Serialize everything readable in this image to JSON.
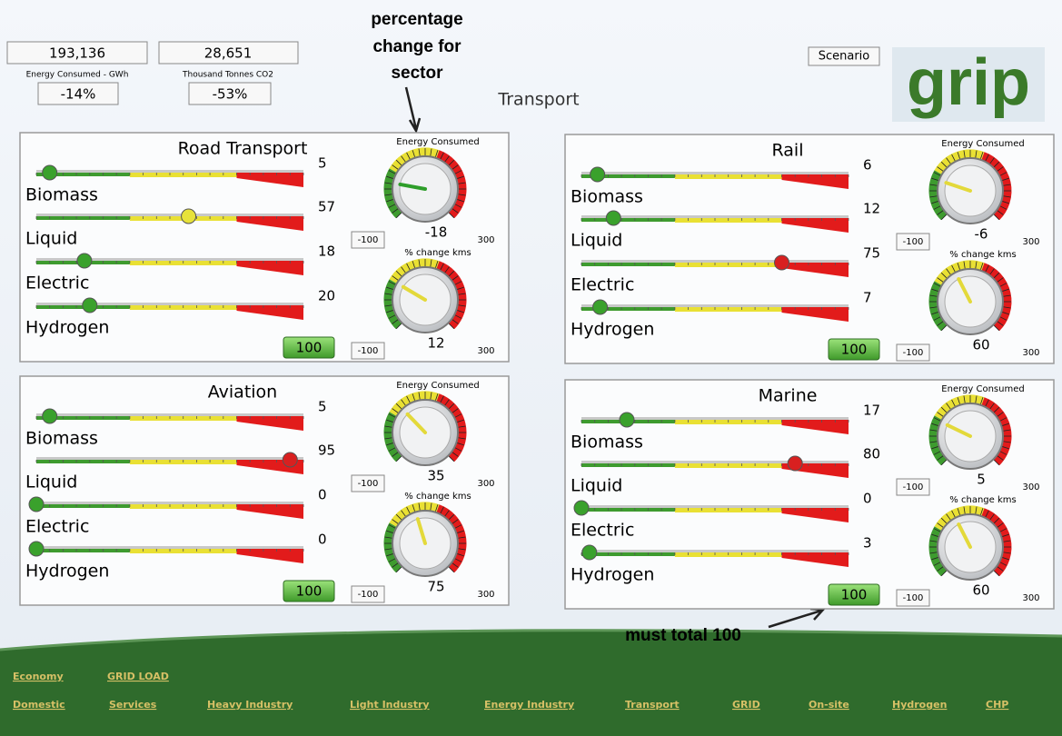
{
  "header": {
    "energy_value": "193,136",
    "energy_label": "Energy Consumed - GWh",
    "energy_change": "-14%",
    "co2_value": "28,651",
    "co2_label": "Thousand Tonnes CO2",
    "co2_change": "-53%",
    "scenario": "Scenario",
    "logo": "grip",
    "page_title": "Transport"
  },
  "annotations": {
    "sector_change": [
      "percentage",
      "change for",
      "sector"
    ],
    "must_total": "must total 100"
  },
  "panels": [
    {
      "title": "Road Transport",
      "total": 100,
      "sliders": [
        {
          "label": "Biomass",
          "value": 5
        },
        {
          "label": "Liquid",
          "value": 57
        },
        {
          "label": "Electric",
          "value": 18
        },
        {
          "label": "Hydrogen",
          "value": 20
        }
      ],
      "gauges": [
        {
          "label": "Energy Consumed",
          "value": -18,
          "min": -100,
          "max": 300
        },
        {
          "label": "% change kms",
          "value": 12,
          "min": -100,
          "max": 300
        }
      ]
    },
    {
      "title": "Rail",
      "total": 100,
      "sliders": [
        {
          "label": "Biomass",
          "value": 6
        },
        {
          "label": "Liquid",
          "value": 12
        },
        {
          "label": "Electric",
          "value": 75
        },
        {
          "label": "Hydrogen",
          "value": 7
        }
      ],
      "gauges": [
        {
          "label": "Energy Consumed",
          "value": -6,
          "min": -100,
          "max": 300
        },
        {
          "label": "% change kms",
          "value": 60,
          "min": -100,
          "max": 300
        }
      ]
    },
    {
      "title": "Aviation",
      "total": 100,
      "sliders": [
        {
          "label": "Biomass",
          "value": 5
        },
        {
          "label": "Liquid",
          "value": 95
        },
        {
          "label": "Electric",
          "value": 0
        },
        {
          "label": "Hydrogen",
          "value": 0
        }
      ],
      "gauges": [
        {
          "label": "Energy Consumed",
          "value": 35,
          "min": -100,
          "max": 300
        },
        {
          "label": "% change kms",
          "value": 75,
          "min": -100,
          "max": 300
        }
      ]
    },
    {
      "title": "Marine",
      "total": 100,
      "sliders": [
        {
          "label": "Biomass",
          "value": 17
        },
        {
          "label": "Liquid",
          "value": 80
        },
        {
          "label": "Electric",
          "value": 0
        },
        {
          "label": "Hydrogen",
          "value": 3
        }
      ],
      "gauges": [
        {
          "label": "Energy Consumed",
          "value": 5,
          "min": -100,
          "max": 300
        },
        {
          "label": "% change kms",
          "value": 60,
          "min": -100,
          "max": 300
        }
      ]
    }
  ],
  "nav": {
    "rows": [
      [
        "Economy",
        "GRID LOAD"
      ],
      [
        "Domestic",
        "Services",
        "Heavy Industry",
        "Light Industry",
        "Energy Industry",
        "Transport",
        "GRID",
        "On-site",
        "Hydrogen",
        "CHP"
      ]
    ]
  }
}
